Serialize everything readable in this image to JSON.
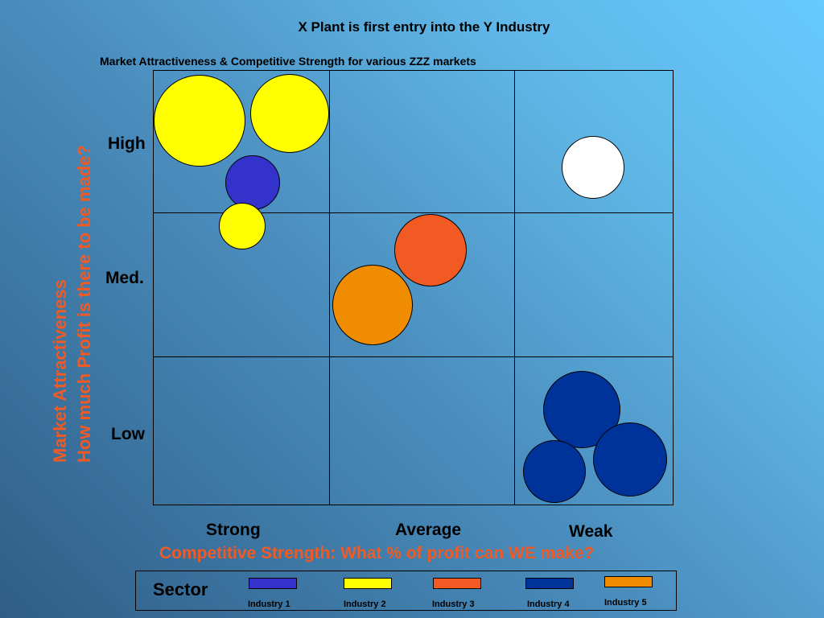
{
  "title": "X Plant is first entry into the Y Industry",
  "subtitle": "Market Attractiveness & Competitive Strength for various ZZZ markets",
  "y_axis": {
    "title_line1": "Market Attractiveness",
    "title_line2": "How much Profit is there to be made?",
    "rows": [
      "High",
      "Med.",
      "Low"
    ]
  },
  "x_axis": {
    "title": "Competitive Strength:  What % of profit can WE make?",
    "columns": [
      "Strong",
      "Average",
      "Weak"
    ]
  },
  "legend": {
    "title": "Sector",
    "items": [
      {
        "label": "Industry 1",
        "color": "#3333cc"
      },
      {
        "label": "Industry 2",
        "color": "#ffff00"
      },
      {
        "label": "Industry 3",
        "color": "#f15a22"
      },
      {
        "label": "Industry 4",
        "color": "#003399"
      },
      {
        "label": "Industry 5",
        "color": "#f08c00"
      }
    ]
  },
  "bubbles": [
    {
      "industry": "Industry 2",
      "cell": "High/Strong",
      "color": "#ffff00"
    },
    {
      "industry": "Industry 2",
      "cell": "High/Strong",
      "color": "#ffff00"
    },
    {
      "industry": "Industry 1",
      "cell": "High/Strong",
      "color": "#3333cc"
    },
    {
      "industry": "Industry 2",
      "cell": "High/Strong",
      "color": "#ffff00"
    },
    {
      "industry": "White",
      "cell": "High/Weak",
      "color": "#ffffff"
    },
    {
      "industry": "Industry 3",
      "cell": "Med./Average",
      "color": "#f15a22"
    },
    {
      "industry": "Industry 5",
      "cell": "Med./Average",
      "color": "#f08c00"
    },
    {
      "industry": "Industry 4",
      "cell": "Low/Weak",
      "color": "#003399"
    },
    {
      "industry": "Industry 4",
      "cell": "Low/Weak",
      "color": "#003399"
    },
    {
      "industry": "Industry 4",
      "cell": "Low/Weak",
      "color": "#003399"
    }
  ]
}
